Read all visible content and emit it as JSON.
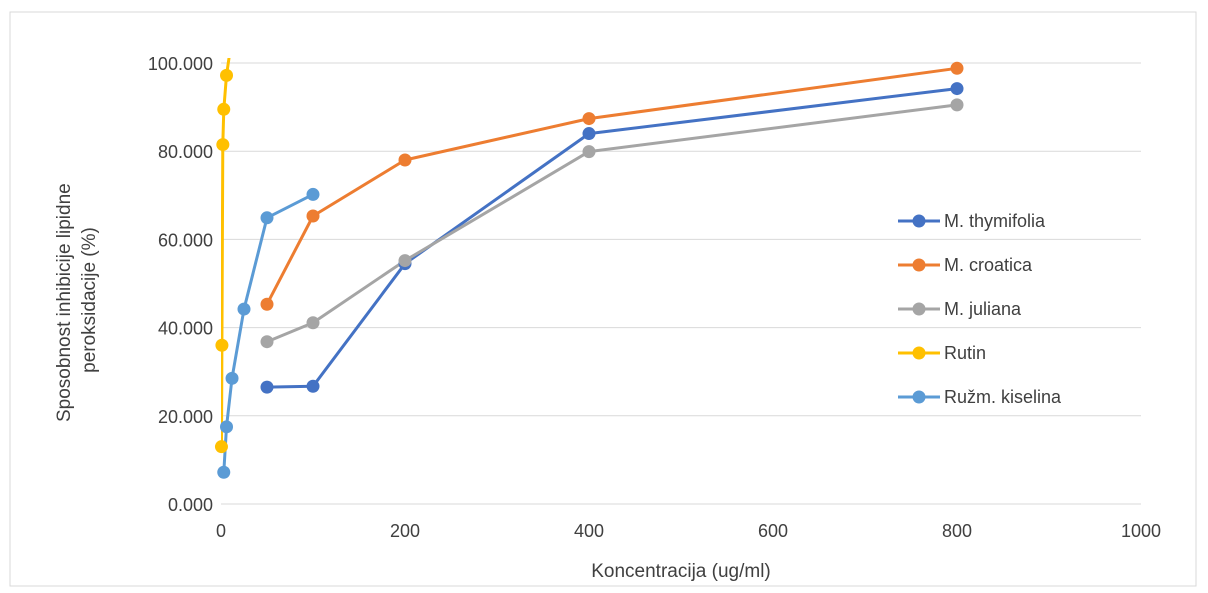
{
  "chart_data": {
    "type": "scatter",
    "mode": "lines+markers",
    "title": "",
    "xlabel": "Koncentracija (ug/ml)",
    "ylabel_lines": [
      "Sposobnost inhibicije lipidne",
      "peroksidacije (%)"
    ],
    "xlim": [
      0,
      1000
    ],
    "ylim": [
      0,
      100
    ],
    "x_ticks": [
      0,
      200,
      400,
      600,
      800,
      1000
    ],
    "x_tick_labels": [
      "0",
      "200",
      "400",
      "600",
      "800",
      "1000"
    ],
    "y_ticks": [
      0,
      20,
      40,
      60,
      80,
      100
    ],
    "y_tick_labels": [
      "0.000",
      "20.000",
      "40.000",
      "60.000",
      "80.000",
      "100.000"
    ],
    "grid": "horizontal",
    "legend_position": "right",
    "series": [
      {
        "name": "M. thymifolia",
        "color": "#4472c4",
        "x": [
          50,
          100,
          200,
          400,
          800
        ],
        "y": [
          26.5,
          26.7,
          54.5,
          84.0,
          94.2
        ]
      },
      {
        "name": "M. croatica",
        "color": "#ed7d31",
        "x": [
          50,
          100,
          200,
          400,
          800
        ],
        "y": [
          45.3,
          65.3,
          78.0,
          87.4,
          98.8
        ]
      },
      {
        "name": "M. juliana",
        "color": "#a5a5a5",
        "x": [
          50,
          100,
          200,
          400,
          800
        ],
        "y": [
          36.8,
          41.1,
          55.2,
          79.9,
          90.5
        ]
      },
      {
        "name": "Rutin",
        "color": "#ffc000",
        "x": [
          0.5,
          1,
          2,
          3,
          6,
          10
        ],
        "y": [
          13.0,
          36.0,
          81.5,
          89.5,
          97.2,
          103.0
        ]
      },
      {
        "name": "Ružm. kiselina",
        "color": "#5b9bd5",
        "x": [
          3,
          6,
          12,
          25,
          50,
          100
        ],
        "y": [
          7.2,
          17.5,
          28.5,
          44.2,
          64.9,
          70.2
        ]
      }
    ]
  }
}
